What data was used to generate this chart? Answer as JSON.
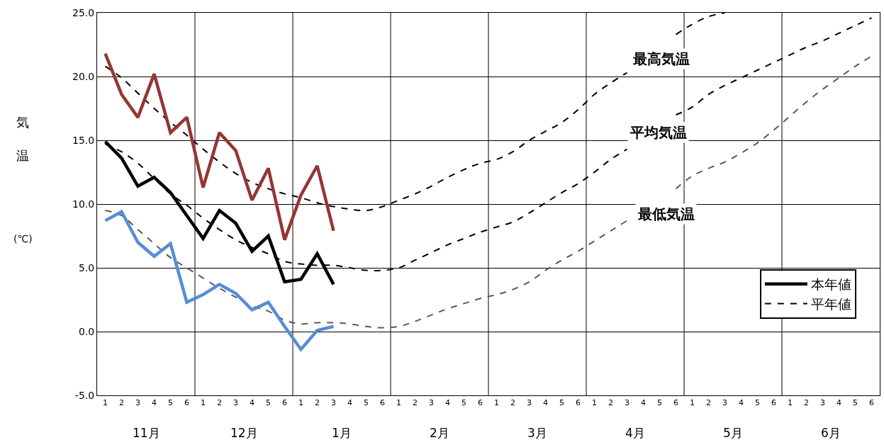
{
  "chart_data": {
    "type": "line",
    "ylabel": "気温(℃)",
    "categories": [
      "1",
      "2",
      "3",
      "4",
      "5",
      "6",
      "1",
      "2",
      "3",
      "4",
      "5",
      "6",
      "1",
      "2",
      "3",
      "4",
      "5",
      "6",
      "1",
      "2",
      "3",
      "4",
      "5",
      "6",
      "1",
      "2",
      "3",
      "4",
      "5",
      "6",
      "1",
      "2",
      "3",
      "4",
      "5",
      "6",
      "1",
      "2",
      "3",
      "4",
      "5",
      "6",
      "1",
      "2",
      "3",
      "4",
      "5",
      "6"
    ],
    "annotations": [
      "11月",
      "12月",
      "1月",
      "2月",
      "3月",
      "4月",
      "5月",
      "6月",
      "最高気温",
      "平均気温",
      "最低気温"
    ],
    "ylim": [
      -5,
      25
    ],
    "yticks": [
      {
        "value": -5,
        "label": "-5.0"
      },
      {
        "value": 0,
        "label": "0.0"
      },
      {
        "value": 5,
        "label": "5.0"
      },
      {
        "value": 10,
        "label": "10.0"
      },
      {
        "value": 15,
        "label": "15.0"
      },
      {
        "value": 20,
        "label": "20.0"
      },
      {
        "value": 25,
        "label": "25.0"
      }
    ],
    "grid": true,
    "legend": "bottom right",
    "marker": "none",
    "series": [
      {
        "color": "#000000",
        "line_style": "dashed",
        "values": [
          20.8,
          19.9,
          18.7,
          17.5,
          16.4,
          15.4,
          14.3,
          13.3,
          12.4,
          11.7,
          11.2,
          10.8,
          10.5,
          10.1,
          9.8,
          9.6,
          9.5,
          9.8,
          10.3,
          10.8,
          11.4,
          12.1,
          12.7,
          13.2,
          13.5,
          14.1,
          15.0,
          15.7,
          16.4,
          17.4,
          18.6,
          19.5,
          20.3,
          null,
          null,
          23.3,
          24.1,
          24.7,
          25.0,
          null,
          null,
          null,
          null,
          null,
          null,
          null,
          null,
          null
        ]
      },
      {
        "name": "平年値",
        "color": "#000000",
        "line_style": "dashed",
        "values": [
          14.7,
          14.1,
          13.2,
          12.0,
          10.8,
          9.9,
          8.9,
          8.0,
          7.2,
          6.6,
          6.1,
          5.5,
          5.3,
          5.2,
          5.2,
          5.0,
          4.8,
          4.8,
          5.0,
          5.6,
          6.2,
          6.8,
          7.3,
          7.8,
          8.2,
          8.6,
          9.3,
          10.1,
          10.9,
          11.6,
          12.5,
          13.5,
          14.3,
          null,
          null,
          17.0,
          17.6,
          18.6,
          19.3,
          19.9,
          20.5,
          21.1,
          21.7,
          22.3,
          22.8,
          23.4,
          24.0,
          24.6
        ]
      },
      {
        "color": "#595959",
        "line_style": "dashed",
        "values": [
          9.5,
          9.1,
          8.0,
          6.9,
          5.8,
          5.0,
          4.2,
          3.4,
          2.7,
          2.0,
          1.6,
          0.9,
          0.6,
          0.7,
          0.7,
          0.6,
          0.4,
          0.3,
          0.4,
          0.8,
          1.3,
          1.8,
          2.2,
          2.6,
          2.9,
          3.3,
          3.9,
          4.8,
          5.6,
          6.3,
          7.1,
          7.9,
          8.7,
          null,
          null,
          11.2,
          12.2,
          12.8,
          13.3,
          14.0,
          14.8,
          15.8,
          16.9,
          18.0,
          19.0,
          19.9,
          20.8,
          21.6
        ]
      },
      {
        "color": "#943634",
        "line_style": "solid",
        "values": [
          21.8,
          18.6,
          16.8,
          20.2,
          15.6,
          16.8,
          11.3,
          15.6,
          14.2,
          10.3,
          12.8,
          7.2,
          10.7,
          13.0,
          7.9,
          null,
          null,
          null,
          null,
          null,
          null,
          null,
          null,
          null,
          null,
          null,
          null,
          null,
          null,
          null,
          null,
          null,
          null,
          null,
          null,
          null,
          null,
          null,
          null,
          null,
          null,
          null,
          null,
          null,
          null,
          null,
          null,
          null
        ]
      },
      {
        "name": "本年値",
        "color": "#000000",
        "line_style": "solid",
        "values": [
          14.9,
          13.6,
          11.4,
          12.1,
          10.9,
          9.1,
          7.3,
          9.5,
          8.5,
          6.3,
          7.5,
          3.9,
          4.1,
          6.1,
          3.7,
          null,
          null,
          null,
          null,
          null,
          null,
          null,
          null,
          null,
          null,
          null,
          null,
          null,
          null,
          null,
          null,
          null,
          null,
          null,
          null,
          null,
          null,
          null,
          null,
          null,
          null,
          null,
          null,
          null,
          null,
          null,
          null,
          null
        ]
      },
      {
        "color": "#558ed5",
        "line_style": "solid",
        "values": [
          8.7,
          9.4,
          7.0,
          5.9,
          6.9,
          2.3,
          2.9,
          3.7,
          3.0,
          1.7,
          2.3,
          0.4,
          -1.4,
          0.1,
          0.4,
          null,
          null,
          null,
          null,
          null,
          null,
          null,
          null,
          null,
          null,
          null,
          null,
          null,
          null,
          null,
          null,
          null,
          null,
          null,
          null,
          null,
          null,
          null,
          null,
          null,
          null,
          null,
          null,
          null,
          null,
          null,
          null,
          null
        ]
      }
    ]
  }
}
